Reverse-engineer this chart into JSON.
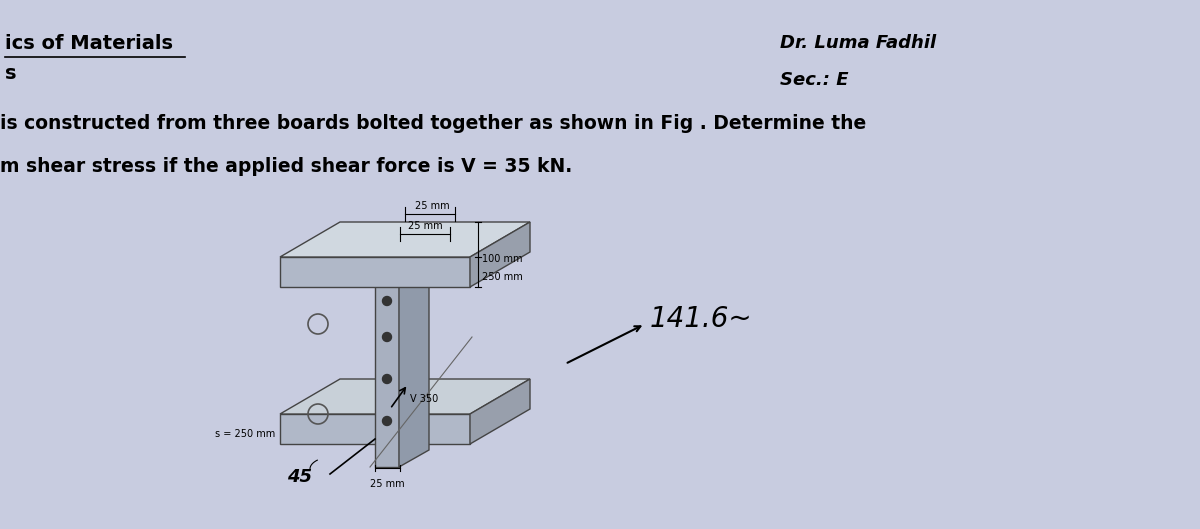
{
  "bg_color": "#c8cce0",
  "title_line1": "ics of Materials",
  "title_line2": "s",
  "instructor": "Dr. Luma Fadhil",
  "section": "Sec.: E",
  "problem_line1": "is constructed from three boards bolted together as shown in Fig . Determine the",
  "problem_line2": "m shear stress if the applied shear force is V = 35 kN.",
  "answer": "141.6~",
  "fig_labels": {
    "top1": "25 mm",
    "top2": "25 mm",
    "right1": "100 mm",
    "right2": "250 mm",
    "bottom1": "V 350",
    "bottom2": "25 mm",
    "left1": "s = 250 mm",
    "angle": "45"
  }
}
